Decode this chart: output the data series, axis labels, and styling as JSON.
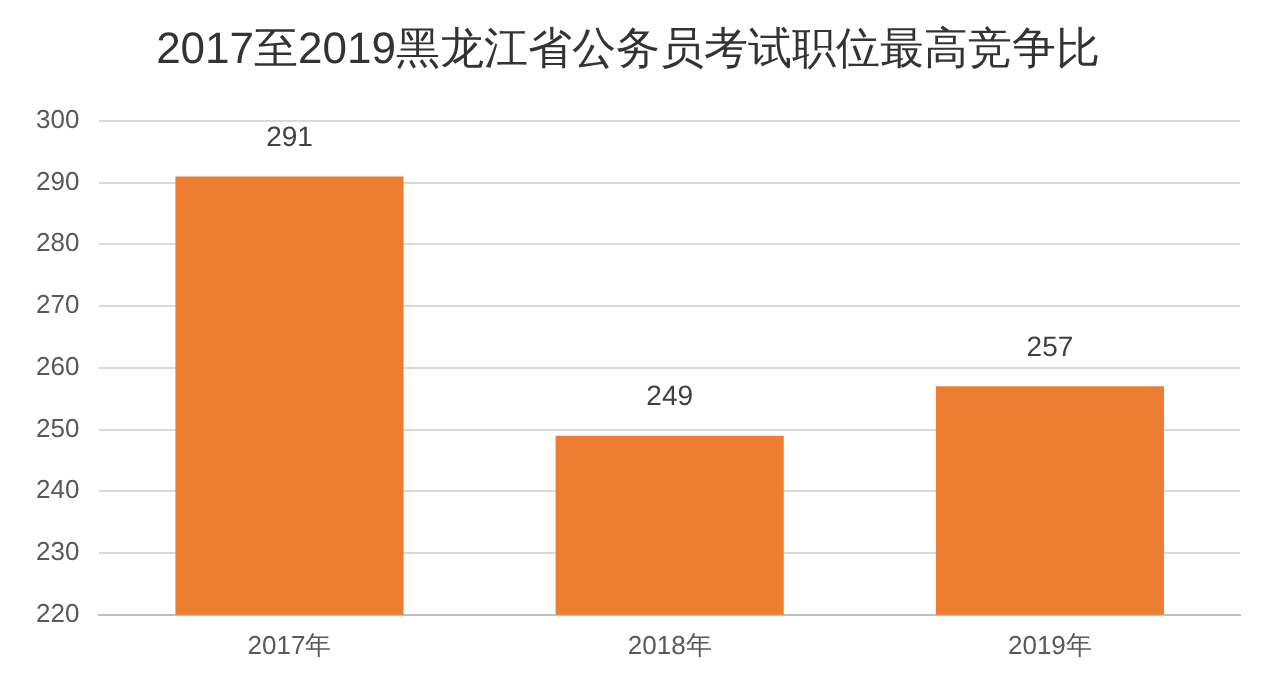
{
  "chart_data": {
    "type": "bar",
    "title": "2017至2019黑龙江省公务员考试职位最高竞争比",
    "categories": [
      "2017年",
      "2018年",
      "2019年"
    ],
    "values": [
      291,
      249,
      257
    ],
    "color": "#ed7d31",
    "ylim": [
      220,
      300
    ],
    "yticks": [
      220,
      230,
      240,
      250,
      260,
      270,
      280,
      290,
      300
    ],
    "grid": "y",
    "data_labels": true
  }
}
